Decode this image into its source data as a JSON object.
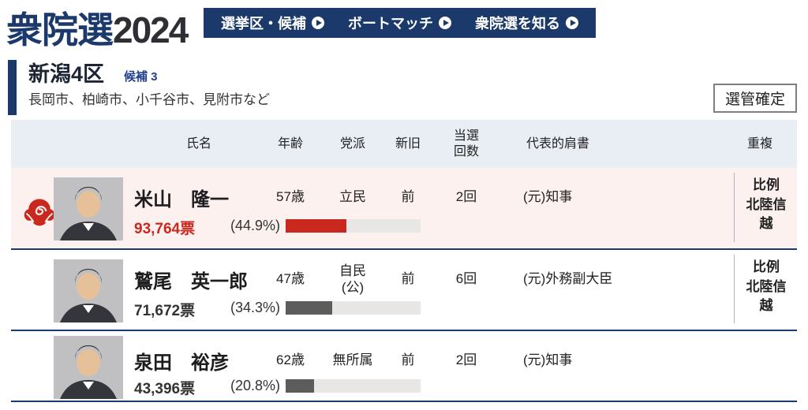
{
  "header": {
    "logo": {
      "main": "衆院選",
      "year": "2024"
    },
    "nav_items": [
      {
        "label": "選挙区・候補"
      },
      {
        "label": "ボートマッチ"
      },
      {
        "label": "衆院選を知る"
      }
    ]
  },
  "district": {
    "name": "新潟4区",
    "candidate_count_label": "候補 3",
    "area": "長岡市、柏崎市、小千谷市、見附市など",
    "status_label": "選管確定"
  },
  "table_headers": {
    "name": "氏名",
    "age": "年齢",
    "party": "党派",
    "incumbency": "新旧",
    "wins": "当選\n回数",
    "rep_title": "代表的肩書",
    "duplicate": "重複"
  },
  "candidates": [
    {
      "name": "米山　隆一",
      "age": "57歳",
      "party": "立民",
      "incumbency": "前",
      "wins": "2回",
      "rep_title": "(元)知事",
      "duplicate": "比例\n北陸信\n越",
      "votes": "93,764票",
      "percent": "(44.9%)",
      "percent_value": 44.9,
      "winner": true
    },
    {
      "name": "鷲尾　英一郎",
      "age": "47歳",
      "party": "自民\n(公)",
      "incumbency": "前",
      "wins": "6回",
      "rep_title": "(元)外務副大臣",
      "duplicate": "比例\n北陸信\n越",
      "votes": "71,672票",
      "percent": "(34.3%)",
      "percent_value": 34.3,
      "winner": false
    },
    {
      "name": "泉田　裕彦",
      "age": "62歳",
      "party": "無所属",
      "incumbency": "前",
      "wins": "2回",
      "rep_title": "(元)知事",
      "duplicate": "",
      "votes": "43,396票",
      "percent": "(20.8%)",
      "percent_value": 20.8,
      "winner": false
    }
  ],
  "colors": {
    "navy": "#1b3a6b",
    "accent_red": "#c8281e",
    "bar_gray": "#5c5c5c",
    "winner_row_bg": "#fdf1f0",
    "table_header_bg": "#e9edf4"
  }
}
